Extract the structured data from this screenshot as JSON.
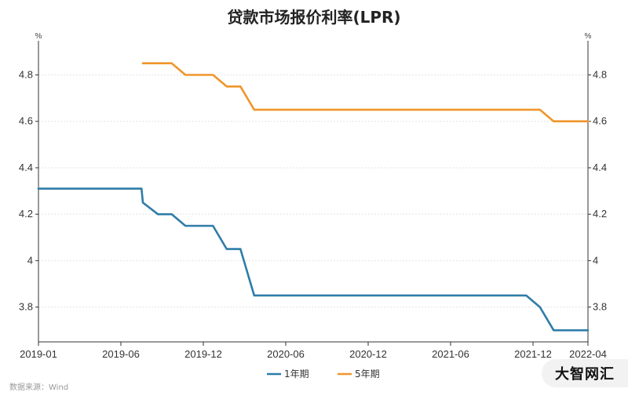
{
  "source_label": "数据来源：Wind",
  "brand": "大智网汇",
  "colors": {
    "series_1y": "#2e7ca8",
    "series_5y": "#f0952b",
    "grid": "#e3e3e3",
    "axis": "#333333"
  },
  "chart_data": {
    "type": "line",
    "title": "贷款市场报价利率(LPR)",
    "unit_left": "%",
    "unit_right": "%",
    "x_tick_labels": [
      "2019-01",
      "2019-06",
      "2019-12",
      "2020-06",
      "2020-12",
      "2021-06",
      "2021-12",
      "2022-04"
    ],
    "x_tick_months": [
      0,
      6,
      12,
      18,
      24,
      30,
      36,
      40
    ],
    "x_range_months": [
      0,
      40
    ],
    "ylim": [
      3.65,
      4.92
    ],
    "y_ticks": [
      3.8,
      4,
      4.2,
      4.4,
      4.6,
      4.8
    ],
    "y_tick_labels": [
      "3.8",
      "4",
      "4.2",
      "4.4",
      "4.6",
      "4.8"
    ],
    "grid": true,
    "legend_position": "bottom-center",
    "series": [
      {
        "name": "1年期",
        "color": "#2e7ca8",
        "points": [
          [
            0,
            4.31
          ],
          [
            7.5,
            4.31
          ],
          [
            7.6,
            4.25
          ],
          [
            8.7,
            4.2
          ],
          [
            9.7,
            4.2
          ],
          [
            10.7,
            4.15
          ],
          [
            12.7,
            4.15
          ],
          [
            13.7,
            4.05
          ],
          [
            14.7,
            4.05
          ],
          [
            15.7,
            3.85
          ],
          [
            35.5,
            3.85
          ],
          [
            36.5,
            3.8
          ],
          [
            37.5,
            3.7
          ],
          [
            40,
            3.7
          ]
        ]
      },
      {
        "name": "5年期",
        "color": "#f0952b",
        "points": [
          [
            7.6,
            4.85
          ],
          [
            9.7,
            4.85
          ],
          [
            10.7,
            4.8
          ],
          [
            12.7,
            4.8
          ],
          [
            13.7,
            4.75
          ],
          [
            14.7,
            4.75
          ],
          [
            15.7,
            4.65
          ],
          [
            36.5,
            4.65
          ],
          [
            37.5,
            4.6
          ],
          [
            40,
            4.6
          ]
        ]
      }
    ]
  }
}
